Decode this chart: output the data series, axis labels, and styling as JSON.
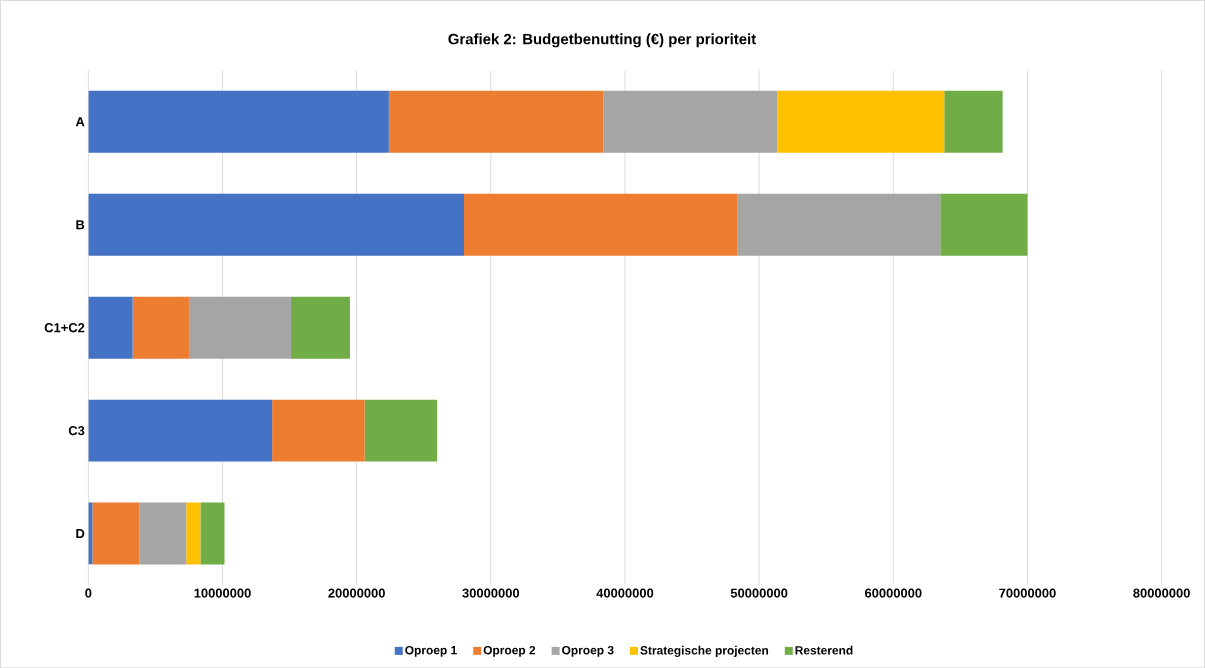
{
  "chart_data": {
    "type": "bar",
    "orientation": "horizontal",
    "stacked": true,
    "title": "Grafiek 2: Budgetbenutting (€) per prioriteit",
    "categories": [
      "A",
      "B",
      "C1+C2",
      "C3",
      "D"
    ],
    "series": [
      {
        "name": "Oproep 1",
        "color": "#4472c4",
        "values": [
          22400000,
          28000000,
          3300000,
          13700000,
          300000
        ]
      },
      {
        "name": "Oproep 2",
        "color": "#ed7d31",
        "values": [
          16000000,
          20400000,
          4200000,
          6900000,
          3500000
        ]
      },
      {
        "name": "Oproep 3",
        "color": "#a5a5a5",
        "values": [
          12950000,
          15100000,
          7600000,
          null,
          3500000
        ]
      },
      {
        "name": "Strategische projecten",
        "color": "#ffc000",
        "values": [
          12450000,
          null,
          null,
          null,
          1050000
        ]
      },
      {
        "name": "Resterend",
        "color": "#70ad47",
        "values": [
          4350000,
          6500000,
          4400000,
          5400000,
          1800000
        ]
      }
    ],
    "xlim": [
      0,
      80000000
    ],
    "xticks": [
      0,
      10000000,
      20000000,
      30000000,
      40000000,
      50000000,
      60000000,
      70000000,
      80000000
    ],
    "grid": "x",
    "legend": "bottom"
  }
}
